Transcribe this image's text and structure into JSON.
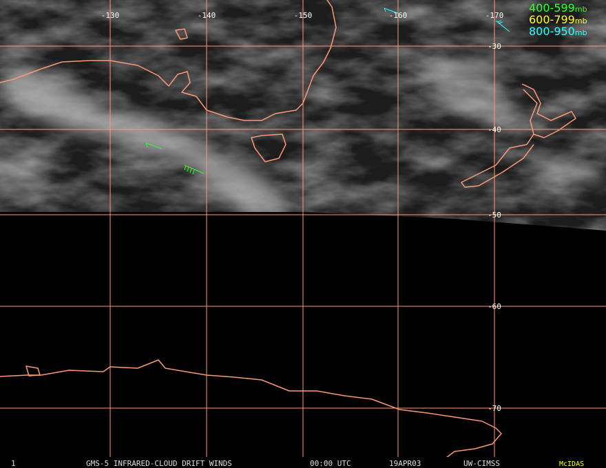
{
  "lon_labels": [
    -130,
    -140,
    -150,
    -160,
    -170
  ],
  "lat_labels": [
    -30,
    -40,
    -50,
    -60,
    -70
  ],
  "legend": [
    {
      "range": "400-599",
      "unit": "mb",
      "color": "#33ff33"
    },
    {
      "range": "600-799",
      "unit": "mb",
      "color": "#ffff33"
    },
    {
      "range": "800-950",
      "unit": "mb",
      "color": "#33ffff"
    }
  ],
  "footer": {
    "frame": "1",
    "title": "GMS-5 INFRARED-CLOUD DRIFT WINDS",
    "time": "00:00 UTC",
    "date": "19APR03",
    "source": "UW-CIMSS",
    "brand": "McIDAS"
  }
}
